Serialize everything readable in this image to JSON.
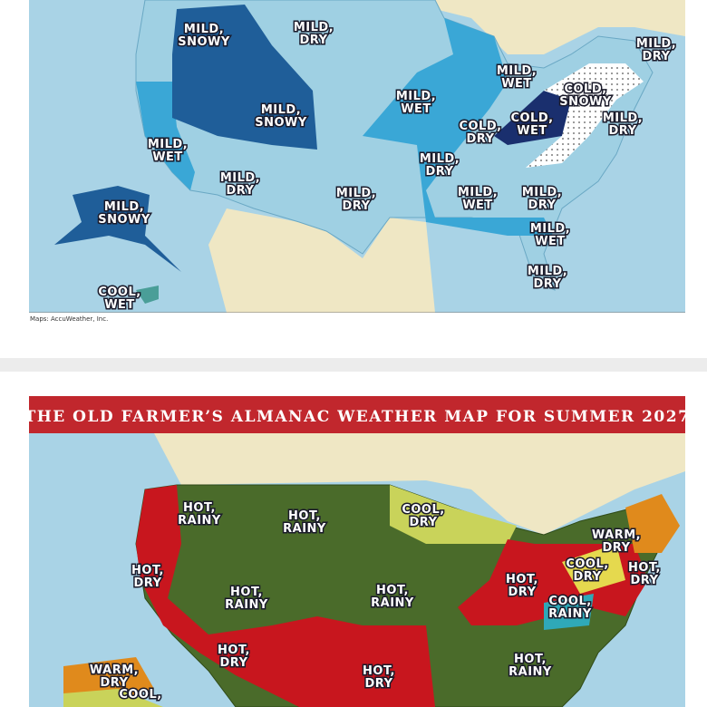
{
  "top_map": {
    "labels": [
      {
        "lines": [
          "MILD,",
          "SNOWY"
        ]
      },
      {
        "lines": [
          "MILD,",
          "DRY"
        ]
      },
      {
        "lines": [
          "MILD,",
          "DRY"
        ]
      },
      {
        "lines": [
          "MILD,",
          "WET"
        ]
      },
      {
        "lines": [
          "COLD,",
          "SNOWY"
        ]
      },
      {
        "lines": [
          "MILD,",
          "WET"
        ]
      },
      {
        "lines": [
          "MILD,",
          "SNOWY"
        ]
      },
      {
        "lines": [
          "COLD,",
          "DRY"
        ]
      },
      {
        "lines": [
          "COLD,",
          "WET"
        ]
      },
      {
        "lines": [
          "MILD,",
          "DRY"
        ]
      },
      {
        "lines": [
          "MILD,",
          "WET"
        ]
      },
      {
        "lines": [
          "MILD,",
          "DRY"
        ]
      },
      {
        "lines": [
          "MILD,",
          "DRY"
        ]
      },
      {
        "lines": [
          "MILD,",
          "DRY"
        ]
      },
      {
        "lines": [
          "MILD,",
          "SNOWY"
        ]
      },
      {
        "lines": [
          "MILD,",
          "WET"
        ]
      },
      {
        "lines": [
          "MILD,",
          "DRY"
        ]
      },
      {
        "lines": [
          "MILD,",
          "WET"
        ]
      },
      {
        "lines": [
          "MILD,",
          "DRY"
        ]
      },
      {
        "lines": [
          "COOL,",
          "WET"
        ]
      }
    ],
    "caption": "Maps: AccuWeather, Inc."
  },
  "bottom_map": {
    "title": "THE OLD FARMER’S ALMANAC WEATHER MAP FOR SUMMER 2027",
    "labels": [
      {
        "lines": [
          "HOT,",
          "RAINY"
        ]
      },
      {
        "lines": [
          "HOT,",
          "RAINY"
        ]
      },
      {
        "lines": [
          "COOL,",
          "DRY"
        ]
      },
      {
        "lines": [
          "WARM,",
          "DRY"
        ]
      },
      {
        "lines": [
          "HOT,",
          "DRY"
        ]
      },
      {
        "lines": [
          "COOL,",
          "DRY"
        ]
      },
      {
        "lines": [
          "HOT,",
          "DRY"
        ]
      },
      {
        "lines": [
          "HOT,",
          "RAINY"
        ]
      },
      {
        "lines": [
          "HOT,",
          "RAINY"
        ]
      },
      {
        "lines": [
          "HOT,",
          "DRY"
        ]
      },
      {
        "lines": [
          "COOL,",
          "RAINY"
        ]
      },
      {
        "lines": [
          "HOT,",
          "DRY"
        ]
      },
      {
        "lines": [
          "HOT,",
          "DRY"
        ]
      },
      {
        "lines": [
          "HOT,",
          "RAINY"
        ]
      },
      {
        "lines": [
          "WARM,",
          "DRY"
        ]
      },
      {
        "lines": [
          "COOL,"
        ]
      }
    ]
  }
}
